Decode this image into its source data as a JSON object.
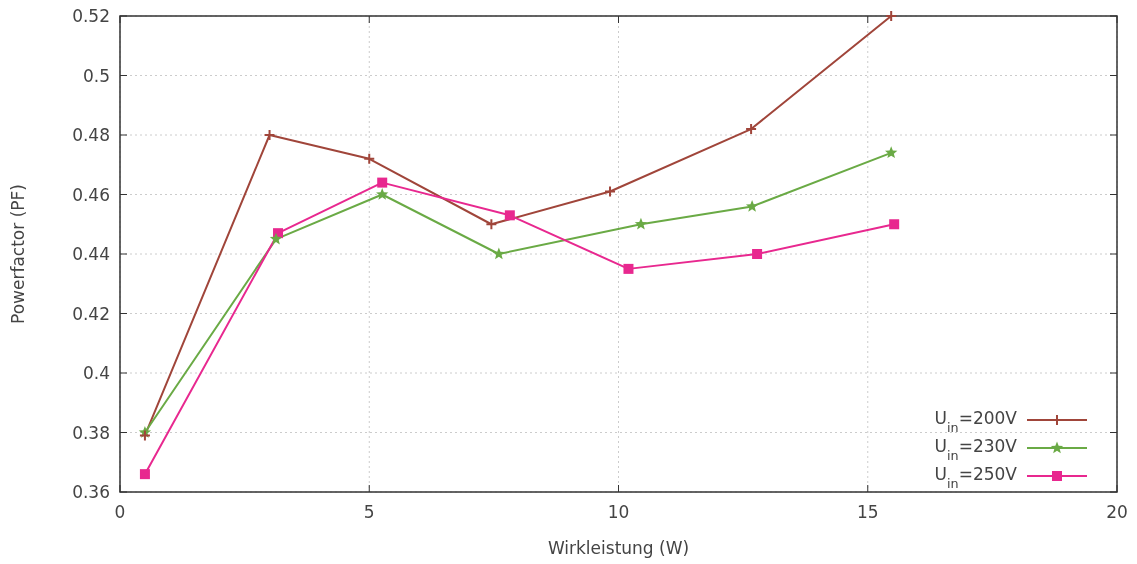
{
  "chart_data": {
    "type": "line",
    "xlabel": "Wirkleistung (W)",
    "ylabel": "Powerfactor (PF)",
    "xlim": [
      0,
      20
    ],
    "xticks": [
      0,
      5,
      10,
      15,
      20
    ],
    "ylim": [
      0.36,
      0.52
    ],
    "yticks": [
      0.36,
      0.38,
      0.4,
      0.42,
      0.44,
      0.46,
      0.48,
      0.5,
      0.52
    ],
    "grid": true,
    "legend": "bottom right",
    "series": [
      {
        "name": "U$_{in}$=200V",
        "color": "#a0453a",
        "marker": "cross",
        "x": [
          0.5,
          3.0,
          5.0,
          7.45,
          9.83,
          12.66,
          15.47
        ],
        "values": [
          0.379,
          0.48,
          0.472,
          0.45,
          0.461,
          0.482,
          0.52
        ]
      },
      {
        "name": "U$_{in}$=230V",
        "color": "#6aaa45",
        "marker": "star",
        "x": [
          0.5,
          3.13,
          5.26,
          7.6,
          10.45,
          12.68,
          15.47
        ],
        "values": [
          0.38,
          0.445,
          0.46,
          0.44,
          0.45,
          0.456,
          0.474
        ]
      },
      {
        "name": "U$_{in}$=250V",
        "color": "#e8288f",
        "marker": "square",
        "x": [
          0.5,
          3.17,
          5.26,
          7.82,
          10.2,
          12.78,
          15.53
        ],
        "values": [
          0.366,
          0.447,
          0.464,
          0.453,
          0.435,
          0.44,
          0.45
        ]
      }
    ]
  }
}
